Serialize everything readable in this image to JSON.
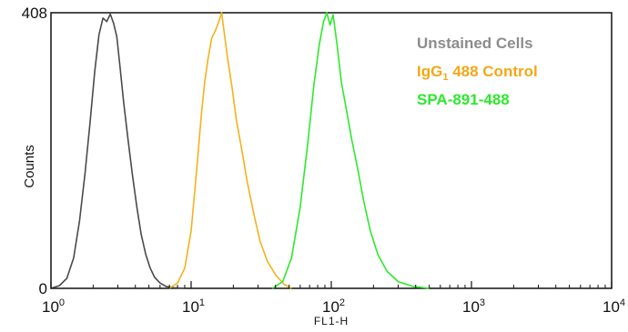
{
  "chart_data": {
    "type": "line",
    "xlabel": "FL1-H",
    "ylabel": "Counts",
    "x_scale": "log",
    "xlim": [
      1,
      10000
    ],
    "ylim": [
      0,
      408
    ],
    "x_ticks": [
      {
        "base": "10",
        "exp": "0"
      },
      {
        "base": "10",
        "exp": "1"
      },
      {
        "base": "10",
        "exp": "2"
      },
      {
        "base": "10",
        "exp": "3"
      },
      {
        "base": "10",
        "exp": "4"
      }
    ],
    "y_ticks": [
      "0",
      "408"
    ],
    "legend_position": "top-right",
    "series": [
      {
        "name": "Unstained Cells",
        "legend_main": "Unstained Cells",
        "legend_sub": "",
        "legend_tail": "",
        "color": "#4a4a4a",
        "legend_color": "#8c8c8c",
        "x": [
          1.0,
          1.15,
          1.3,
          1.45,
          1.6,
          1.75,
          1.9,
          2.05,
          2.2,
          2.35,
          2.5,
          2.65,
          2.8,
          2.95,
          3.1,
          3.3,
          3.55,
          3.8,
          4.1,
          4.4,
          4.75,
          5.1,
          5.5,
          6.0,
          6.6,
          7.5,
          9.0
        ],
        "y": [
          0,
          4,
          15,
          45,
          100,
          170,
          245,
          320,
          375,
          400,
          395,
          406,
          392,
          372,
          330,
          275,
          220,
          170,
          120,
          80,
          50,
          30,
          16,
          8,
          3,
          1,
          0
        ]
      },
      {
        "name": "IgG1 488 Control",
        "legend_main": "IgG",
        "legend_sub": "1",
        "legend_tail": "  488 Control",
        "color": "#f2b21c",
        "legend_color": "#f0a818",
        "x": [
          7.0,
          8.0,
          9.0,
          10.0,
          11.0,
          11.8,
          12.5,
          13.2,
          14.0,
          14.8,
          15.6,
          16.5,
          17.3,
          18.2,
          19.5,
          21.0,
          23.0,
          25.0,
          28.0,
          31.0,
          35.0,
          40.0,
          46.0,
          52.0
        ],
        "y": [
          0,
          8,
          30,
          85,
          180,
          255,
          305,
          340,
          370,
          380,
          392,
          408,
          375,
          340,
          300,
          250,
          205,
          160,
          110,
          70,
          40,
          20,
          6,
          0
        ]
      },
      {
        "name": "SPA-891-488",
        "legend_main": "SPA-891-488",
        "legend_sub": "",
        "legend_tail": "",
        "color": "#2ee82e",
        "legend_color": "#2ee82e",
        "x": [
          38.0,
          45.0,
          52.0,
          60.0,
          68.0,
          75.0,
          82.0,
          88.0,
          93.0,
          98.0,
          103.0,
          110.0,
          118.0,
          128.0,
          140.0,
          155.0,
          170.0,
          190.0,
          215.0,
          250.0,
          300.0,
          380.0,
          500.0
        ],
        "y": [
          0,
          10,
          45,
          120,
          215,
          300,
          360,
          395,
          408,
          390,
          405,
          360,
          305,
          265,
          220,
          175,
          130,
          85,
          50,
          25,
          10,
          3,
          0
        ]
      }
    ]
  }
}
